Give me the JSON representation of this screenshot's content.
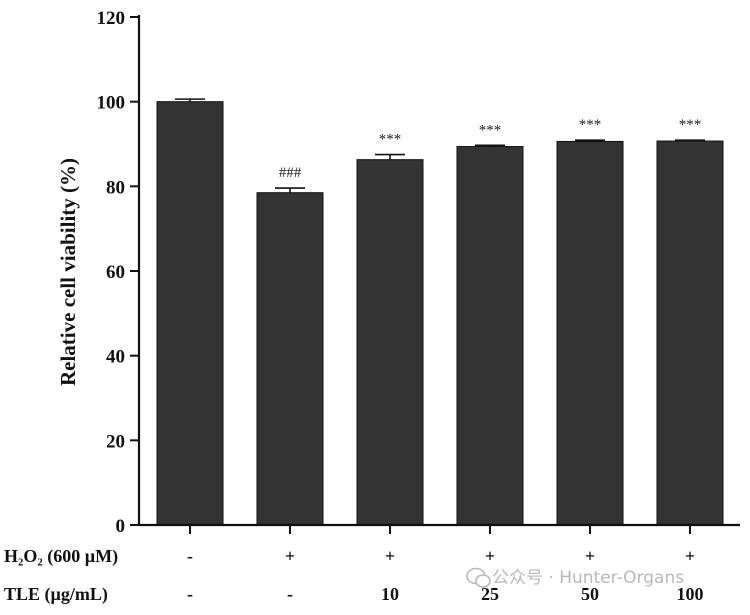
{
  "chart_data": {
    "type": "bar",
    "ylabel": "Relative cell viability (%)",
    "ylim": [
      0,
      120
    ],
    "yticks": [
      0,
      20,
      40,
      60,
      80,
      100,
      120
    ],
    "grid": false,
    "bar_color": "#333333",
    "values": [
      100.0,
      78.5,
      86.3,
      89.4,
      90.6,
      90.7
    ],
    "errors": [
      0.6,
      1.1,
      1.2,
      0.3,
      0.3,
      0.2
    ],
    "significance": [
      "",
      "###",
      "***",
      "***",
      "***",
      "***"
    ],
    "treatments": [
      {
        "label": "H₂O₂ (600 µM)",
        "values": [
          "-",
          "+",
          "+",
          "+",
          "+",
          "+"
        ]
      },
      {
        "label": "TLE (µg/mL)",
        "values": [
          "-",
          "-",
          "10",
          "25",
          "50",
          "100"
        ]
      }
    ]
  },
  "watermark": {
    "icon": "wechat-icon",
    "text": "公众号 · Hunter-Organs"
  }
}
